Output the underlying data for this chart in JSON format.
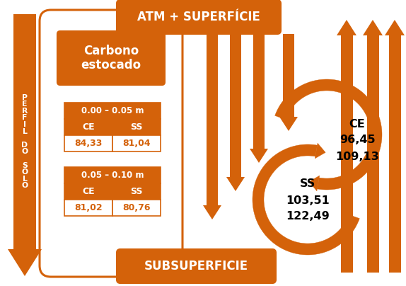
{
  "bg_color": "#ffffff",
  "orange": "#D4620A",
  "title_top": "ATM + SUPERFÍCIE",
  "title_bottom": "SUBSUPERFICIE",
  "perfil_text": "P\nE\nR\nF\nI\nL\n \nD\nO\n \nS\nO\nL\nO",
  "carbono_text": "Carbono\nestocado",
  "table1_header": "0.00 – 0.05 m",
  "table2_header": "0.05 – 0.10 m",
  "col1": "CE",
  "col2": "SS",
  "val1_ce": "84,33",
  "val1_ss": "81,04",
  "val2_ce": "81,02",
  "val2_ss": "80,76",
  "ce_label": "CE",
  "ce_val1": "96,45",
  "ce_val2": "109,13",
  "ss_label": "SS",
  "ss_val1": "103,51",
  "ss_val2": "122,49"
}
